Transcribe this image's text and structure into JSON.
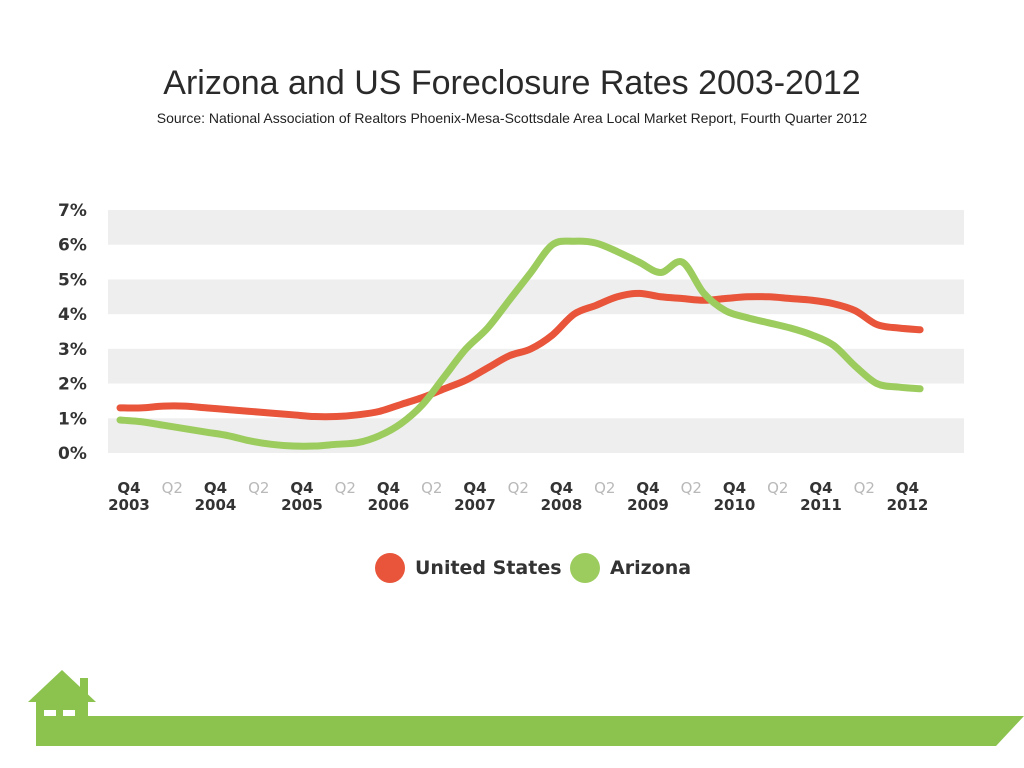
{
  "header": {
    "title": "Arizona and US Foreclosure Rates 2003-2012",
    "subtitle": "Source: National Association of Realtors Phoenix-Mesa-Scottsdale Area Local Market Report, Fourth Quarter 2012"
  },
  "legend": {
    "us_label": "United States",
    "az_label": "Arizona"
  },
  "colors": {
    "us": "#e8553a",
    "az": "#9ccc5e",
    "band": "#eeeeee",
    "footer": "#8cc34f"
  },
  "chart_data": {
    "type": "line",
    "title": "Arizona and US Foreclosure Rates 2003-2012",
    "xlabel": "",
    "ylabel": "",
    "ylim": [
      0,
      7
    ],
    "y_ticks": [
      "0%",
      "1%",
      "2%",
      "3%",
      "4%",
      "5%",
      "6%",
      "7%"
    ],
    "x_ticks": [
      {
        "q": "Q4",
        "year": "2003"
      },
      {
        "q": "Q2",
        "year": ""
      },
      {
        "q": "Q4",
        "year": "2004"
      },
      {
        "q": "Q2",
        "year": ""
      },
      {
        "q": "Q4",
        "year": "2005"
      },
      {
        "q": "Q2",
        "year": ""
      },
      {
        "q": "Q4",
        "year": "2006"
      },
      {
        "q": "Q2",
        "year": ""
      },
      {
        "q": "Q4",
        "year": "2007"
      },
      {
        "q": "Q2",
        "year": ""
      },
      {
        "q": "Q4",
        "year": "2008"
      },
      {
        "q": "Q2",
        "year": ""
      },
      {
        "q": "Q4",
        "year": "2009"
      },
      {
        "q": "Q2",
        "year": ""
      },
      {
        "q": "Q4",
        "year": "2010"
      },
      {
        "q": "Q2",
        "year": ""
      },
      {
        "q": "Q4",
        "year": "2011"
      },
      {
        "q": "Q2",
        "year": ""
      },
      {
        "q": "Q4",
        "year": "2012"
      }
    ],
    "grid": "alternating horizontal bands",
    "legend_position": "bottom-center",
    "x": [
      2003.75,
      2004.0,
      2004.25,
      2004.5,
      2004.75,
      2005.0,
      2005.25,
      2005.5,
      2005.75,
      2006.0,
      2006.25,
      2006.5,
      2006.75,
      2007.0,
      2007.25,
      2007.5,
      2007.75,
      2008.0,
      2008.25,
      2008.5,
      2008.75,
      2009.0,
      2009.25,
      2009.5,
      2009.75,
      2010.0,
      2010.25,
      2010.5,
      2010.75,
      2011.0,
      2011.25,
      2011.5,
      2011.75,
      2012.0,
      2012.25,
      2012.5,
      2012.75,
      2013.0
    ],
    "series": [
      {
        "name": "United States",
        "values": [
          1.3,
          1.3,
          1.35,
          1.35,
          1.3,
          1.25,
          1.2,
          1.15,
          1.1,
          1.05,
          1.05,
          1.1,
          1.2,
          1.4,
          1.6,
          1.85,
          2.1,
          2.45,
          2.8,
          3.0,
          3.4,
          4.0,
          4.25,
          4.5,
          4.6,
          4.5,
          4.45,
          4.4,
          4.45,
          4.5,
          4.5,
          4.45,
          4.4,
          4.3,
          4.1,
          3.7,
          3.6,
          3.55
        ],
        "color": "#e8553a"
      },
      {
        "name": "Arizona",
        "values": [
          0.95,
          0.9,
          0.8,
          0.7,
          0.6,
          0.5,
          0.35,
          0.25,
          0.2,
          0.2,
          0.25,
          0.3,
          0.5,
          0.85,
          1.4,
          2.2,
          3.0,
          3.6,
          4.4,
          5.2,
          6.0,
          6.1,
          6.05,
          5.8,
          5.5,
          5.2,
          5.5,
          4.6,
          4.1,
          3.9,
          3.75,
          3.6,
          3.4,
          3.1,
          2.5,
          2.0,
          1.9,
          1.85
        ],
        "color": "#9ccc5e"
      }
    ]
  }
}
